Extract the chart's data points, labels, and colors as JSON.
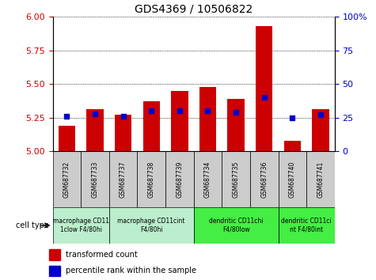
{
  "title": "GDS4369 / 10506822",
  "samples": [
    "GSM687732",
    "GSM687733",
    "GSM687737",
    "GSM687738",
    "GSM687739",
    "GSM687734",
    "GSM687735",
    "GSM687736",
    "GSM687740",
    "GSM687741"
  ],
  "transformed_count": [
    5.19,
    5.31,
    5.27,
    5.37,
    5.45,
    5.48,
    5.39,
    5.93,
    5.08,
    5.31
  ],
  "percentile_rank": [
    26,
    28,
    26,
    30,
    30,
    30,
    29,
    40,
    25,
    27
  ],
  "ylim": [
    5.0,
    6.0
  ],
  "y_ticks": [
    5.0,
    5.25,
    5.5,
    5.75,
    6.0
  ],
  "y2_ticks": [
    0,
    25,
    50,
    75,
    100
  ],
  "bar_color": "#cc0000",
  "square_color": "#0000cc",
  "sample_box_color": "#cccccc",
  "cell_groups": [
    {
      "label": "macrophage CD11\n1clow F4/80hi",
      "indices": [
        0,
        1
      ],
      "color": "#bbeecc"
    },
    {
      "label": "macrophage CD11cint\nF4/80hi",
      "indices": [
        2,
        3,
        4
      ],
      "color": "#bbeecc"
    },
    {
      "label": "dendritic CD11chi\nF4/80low",
      "indices": [
        5,
        6,
        7
      ],
      "color": "#44ee44"
    },
    {
      "label": "dendritic CD11ci\nnt F4/80int",
      "indices": [
        8,
        9
      ],
      "color": "#44ee44"
    }
  ],
  "legend_red": "transformed count",
  "legend_blue": "percentile rank within the sample",
  "bar_width": 0.6,
  "figsize": [
    4.75,
    3.54
  ],
  "dpi": 100
}
